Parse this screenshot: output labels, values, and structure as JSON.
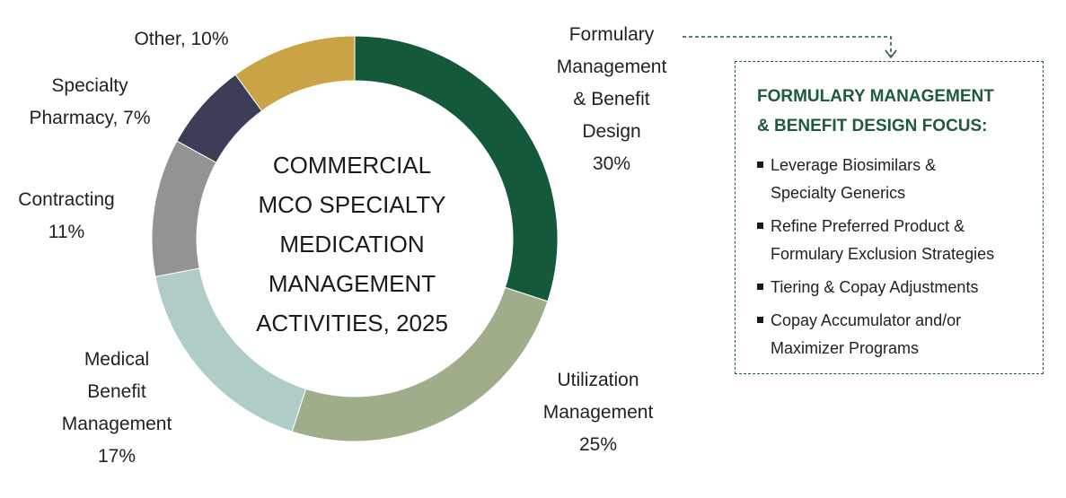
{
  "chart_data": {
    "type": "pie",
    "title": "COMMERCIAL MCO SPECIALTY MEDICATION MANAGEMENT ACTIVITIES, 2025",
    "title_lines": [
      "COMMERCIAL",
      "MCO SPECIALTY",
      "MEDICATION",
      "MANAGEMENT",
      "ACTIVITIES, 2025"
    ],
    "donut": true,
    "series": [
      {
        "label_lines": [
          "Formulary",
          "Management",
          "& Benefit",
          "Design",
          "30%"
        ],
        "value": 30,
        "color": "#145a3a"
      },
      {
        "label_lines": [
          "Utilization",
          "Management",
          "25%"
        ],
        "value": 25,
        "color": "#a0ad8a"
      },
      {
        "label_lines": [
          "Medical",
          "Benefit",
          "Management",
          "17%"
        ],
        "value": 17,
        "color": "#b0ccc8"
      },
      {
        "label_lines": [
          "Contracting",
          "11%"
        ],
        "value": 11,
        "color": "#939393"
      },
      {
        "label_lines": [
          "Specialty",
          "Pharmacy, 7%"
        ],
        "value": 7,
        "color": "#3c3e58"
      },
      {
        "label_lines": [
          "Other, 10%"
        ],
        "value": 10,
        "color": "#c9a345"
      }
    ]
  },
  "focus_box": {
    "title_lines": [
      "FORMULARY MANAGEMENT",
      "& BENEFIT DESIGN FOCUS:"
    ],
    "items": [
      [
        "Leverage Biosimilars &",
        "Specialty Generics"
      ],
      [
        "Refine Preferred Product &",
        "Formulary Exclusion Strategies"
      ],
      [
        "Tiering & Copay Adjustments"
      ],
      [
        "Copay Accumulator and/or",
        "Maximizer Programs"
      ]
    ],
    "accent_color": "#1e5a3c"
  }
}
